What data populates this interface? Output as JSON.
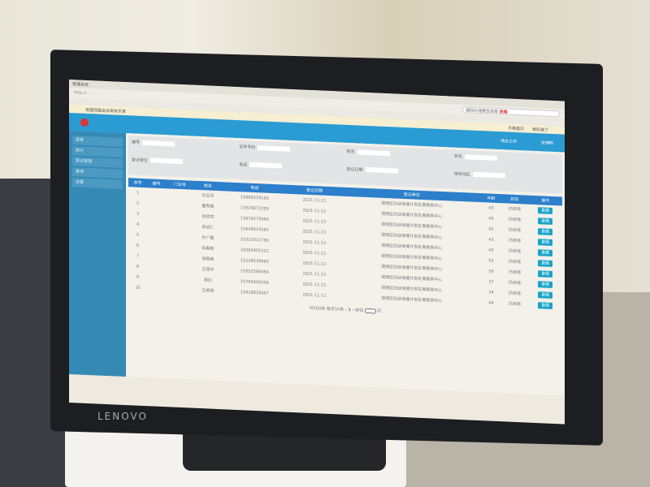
{
  "browser": {
    "tab": "管理系统",
    "url": "http://...",
    "search": "搜网办理惠民政策",
    "search_badge": "热搜"
  },
  "notice": {
    "text": "百度网盘会员周末乐享",
    "dismiss": "不再提示",
    "ok": "我知道了"
  },
  "app": {
    "todo": "待办工作",
    "user": "安博购"
  },
  "sidebar": [
    "菜单",
    "统计",
    "登记管理",
    "查询",
    "设置"
  ],
  "filters": [
    "编号",
    "证件号码",
    "姓名",
    "状态",
    "登记单位",
    "电话",
    "登记日期",
    "审核地区"
  ],
  "table": {
    "headers": [
      "序号",
      "编号",
      "门诊号",
      "姓名",
      "电话",
      "登记日期",
      "登记单位",
      "年龄",
      "状态",
      "操作"
    ],
    "rows": [
      [
        "1",
        "",
        "",
        "刘玉凤",
        "15986219160",
        "2021-11-11",
        "视频区妇幼保健计划生育服务中心",
        "43",
        "已核销",
        "查看"
      ],
      [
        "2",
        "",
        "",
        "董秀霞",
        "13525872209",
        "2021-11-11",
        "视频区妇幼保健计划生育服务中心",
        "45",
        "已核销",
        "查看"
      ],
      [
        "3",
        "",
        "",
        "刘欣然",
        "13676275964",
        "2021-11-11",
        "视频区妇幼保健计划生育服务中心",
        "42",
        "已核销",
        "查看"
      ],
      [
        "4",
        "",
        "",
        "李绍仁",
        "15648623562",
        "2021-11-11",
        "视频区妇幼保健计划生育服务中心",
        "43",
        "已核销",
        "查看"
      ],
      [
        "5",
        "",
        "",
        "许广霞",
        "15332012706",
        "2021-11-11",
        "视频区妇幼保健计划生育服务中心",
        "45",
        "已核销",
        "查看"
      ],
      [
        "6",
        "",
        "",
        "宋春艳",
        "18385901522",
        "2021-11-11",
        "视频区妇幼保健计划生育服务中心",
        "52",
        "已核销",
        "查看"
      ],
      [
        "7",
        "",
        "",
        "徐国英",
        "15236539965",
        "2021-11-11",
        "视频区妇幼保健计划生育服务中心",
        "50",
        "已核销",
        "查看"
      ],
      [
        "8",
        "",
        "",
        "王丽华",
        "15552569454",
        "2021-11-11",
        "视频区妇幼保健计划生育服务中心",
        "37",
        "已核销",
        "查看"
      ],
      [
        "9",
        "",
        "",
        "周红",
        "15765600506",
        "2021-11-11",
        "视频区妇幼保健计划生育服务中心",
        "34",
        "已核销",
        "查看"
      ],
      [
        "10",
        "",
        "",
        "王艳丽",
        "15918626457",
        "2021-11-11",
        "视频区妇幼保健计划生育服务中心",
        "44",
        "已核销",
        "查看"
      ]
    ]
  },
  "pager": {
    "text": "共100条 每页10条",
    "goto": "前往",
    "page": "1",
    "unit": "页"
  },
  "monitor_brand": "LENOVO"
}
